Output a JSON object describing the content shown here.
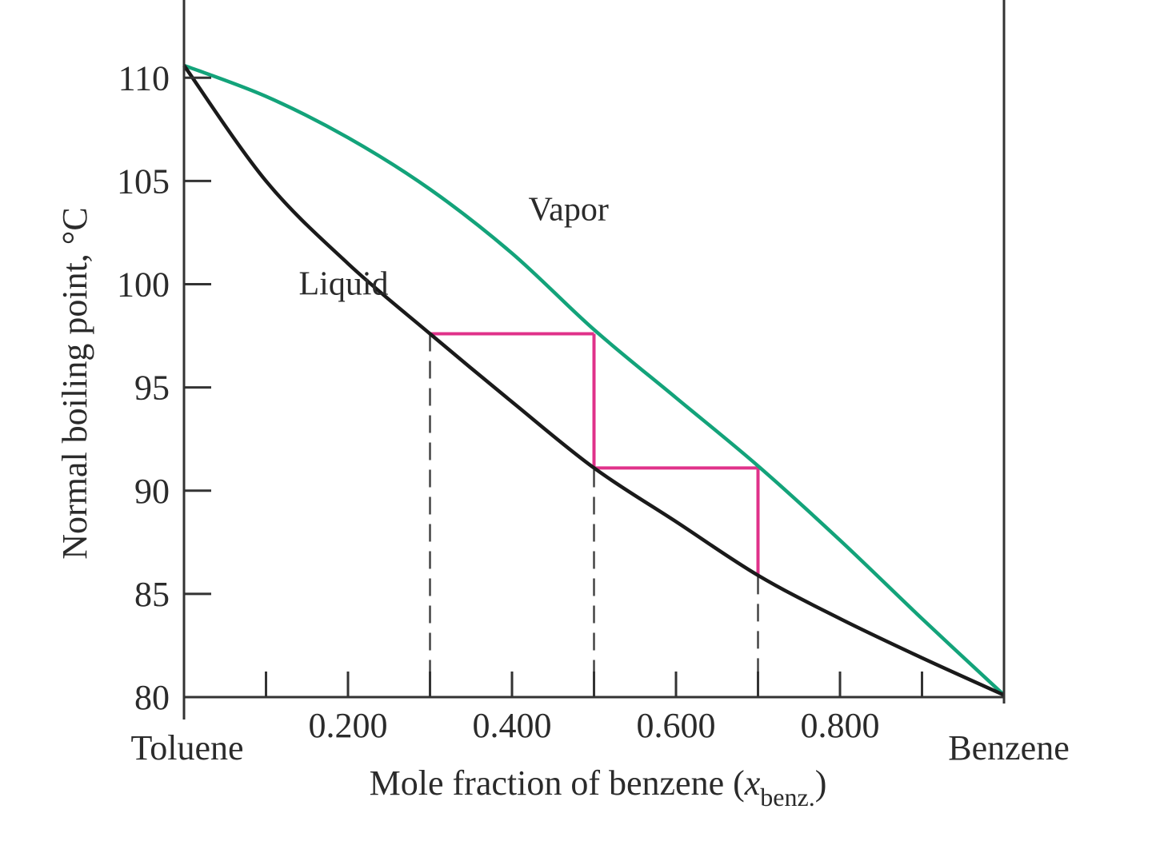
{
  "chart_data": {
    "type": "line",
    "title": "",
    "xlabel": "Mole fraction of benzene",
    "xlabel_symbol": "x",
    "xlabel_subscript": "benz.",
    "ylabel": "Normal boiling point, °C",
    "xlim": [
      0,
      1
    ],
    "ylim": [
      80,
      110
    ],
    "grid": false,
    "x_end_labels": {
      "left": "Toluene",
      "right": "Benzene"
    },
    "x_tick_labels": [
      {
        "value": 0.2,
        "label": "0.200"
      },
      {
        "value": 0.4,
        "label": "0.400"
      },
      {
        "value": 0.6,
        "label": "0.600"
      },
      {
        "value": 0.8,
        "label": "0.800"
      }
    ],
    "x_minor_ticks": [
      0.1,
      0.2,
      0.3,
      0.4,
      0.5,
      0.6,
      0.7,
      0.8,
      0.9
    ],
    "y_ticks": [
      {
        "value": 80,
        "label": "80"
      },
      {
        "value": 85,
        "label": "85"
      },
      {
        "value": 90,
        "label": "90"
      },
      {
        "value": 95,
        "label": "95"
      },
      {
        "value": 100,
        "label": "100"
      },
      {
        "value": 105,
        "label": "105"
      },
      {
        "value": 110,
        "label": "110"
      }
    ],
    "series": [
      {
        "name": "Vapor",
        "color": "#13a37a",
        "x": [
          0.0,
          0.1,
          0.2,
          0.3,
          0.4,
          0.5,
          0.6,
          0.7,
          0.8,
          0.9,
          1.0
        ],
        "y": [
          110.6,
          109.1,
          107.1,
          104.6,
          101.5,
          97.8,
          94.5,
          91.2,
          87.6,
          83.8,
          80.1
        ]
      },
      {
        "name": "Liquid",
        "color": "#1a1a1a",
        "x": [
          0.0,
          0.1,
          0.2,
          0.3,
          0.4,
          0.5,
          0.6,
          0.7,
          0.8,
          0.9,
          1.0
        ],
        "y": [
          110.6,
          105.0,
          101.0,
          97.6,
          94.3,
          91.1,
          88.5,
          85.9,
          83.8,
          81.9,
          80.1
        ]
      }
    ],
    "step_lines": {
      "color": "#e0328a",
      "segments": [
        {
          "x1": 0.3,
          "y1": 97.6,
          "x2": 0.5,
          "y2": 97.6
        },
        {
          "x1": 0.5,
          "y1": 97.6,
          "x2": 0.5,
          "y2": 91.1
        },
        {
          "x1": 0.5,
          "y1": 91.1,
          "x2": 0.7,
          "y2": 91.1
        },
        {
          "x1": 0.7,
          "y1": 91.1,
          "x2": 0.7,
          "y2": 85.9
        }
      ]
    },
    "dashed_drops": [
      {
        "x": 0.3,
        "from_y": 97.6
      },
      {
        "x": 0.5,
        "from_y": 97.6
      },
      {
        "x": 0.7,
        "from_y": 91.1
      }
    ],
    "annotations": [
      {
        "text": "Vapor",
        "x": 0.42,
        "y": 103.1
      },
      {
        "text": "Liquid",
        "x": 0.14,
        "y": 99.5
      }
    ]
  }
}
